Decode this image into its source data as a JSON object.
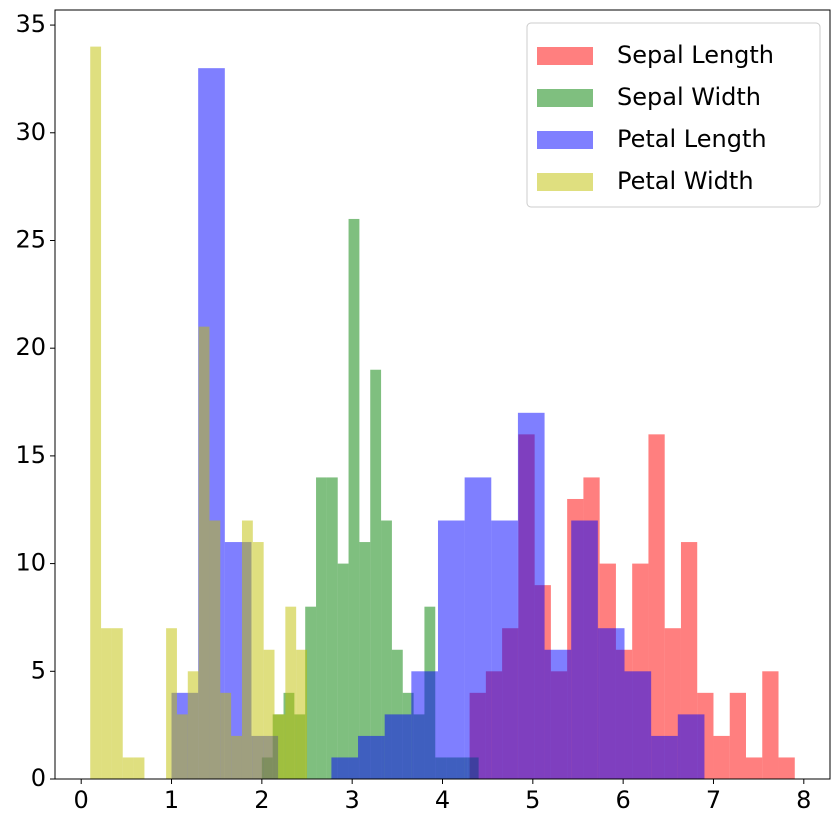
{
  "chart_data": {
    "type": "histogram",
    "series": [
      {
        "name": "Sepal Length",
        "color": "#ff0000",
        "bins": [
          4.3,
          4.48,
          4.66,
          4.84,
          5.02,
          5.2,
          5.38,
          5.56,
          5.74,
          5.92,
          6.1,
          6.28,
          6.46,
          6.64,
          6.82,
          7.0,
          7.18,
          7.36,
          7.54,
          7.72,
          7.9
        ],
        "values": [
          4,
          5,
          7,
          16,
          9,
          5,
          13,
          14,
          10,
          6,
          10,
          16,
          7,
          11,
          4,
          2,
          4,
          1,
          5,
          1
        ]
      },
      {
        "name": "Sepal Width",
        "color": "#008000",
        "bins": [
          2.0,
          2.12,
          2.24,
          2.36,
          2.48,
          2.6,
          2.72,
          2.84,
          2.96,
          3.08,
          3.2,
          3.32,
          3.44,
          3.56,
          3.68,
          3.8,
          3.92,
          4.04,
          4.16,
          4.28,
          4.4
        ],
        "values": [
          1,
          3,
          4,
          3,
          8,
          14,
          14,
          10,
          26,
          11,
          19,
          12,
          6,
          4,
          3,
          8,
          1,
          1,
          1,
          1
        ]
      },
      {
        "name": "Petal Length",
        "color": "#0000ff",
        "bins": [
          1.0,
          1.295,
          1.59,
          1.885,
          2.18,
          2.475,
          2.77,
          3.065,
          3.36,
          3.655,
          3.95,
          4.245,
          4.54,
          4.835,
          5.13,
          5.425,
          5.72,
          6.015,
          6.31,
          6.605,
          6.9
        ],
        "values": [
          4,
          33,
          11,
          2,
          0,
          0,
          1,
          2,
          3,
          5,
          12,
          14,
          12,
          17,
          6,
          12,
          7,
          5,
          2,
          3
        ]
      },
      {
        "name": "Petal Width",
        "color": "#bfbf00",
        "bins": [
          0.1,
          0.22,
          0.34,
          0.46,
          0.58,
          0.7,
          0.82,
          0.94,
          1.06,
          1.18,
          1.3,
          1.42,
          1.54,
          1.66,
          1.78,
          1.9,
          2.02,
          2.14,
          2.26,
          2.38,
          2.5
        ],
        "values": [
          34,
          7,
          7,
          1,
          1,
          0,
          0,
          7,
          3,
          5,
          21,
          12,
          4,
          2,
          12,
          11,
          6,
          3,
          8,
          6
        ]
      }
    ],
    "alpha": 0.5,
    "xlim": [
      -0.29,
      8.29
    ],
    "ylim": [
      0,
      35.7
    ],
    "xticks": [
      0,
      1,
      2,
      3,
      4,
      5,
      6,
      7,
      8
    ],
    "yticks": [
      0,
      5,
      10,
      15,
      20,
      25,
      30,
      35
    ],
    "legend": "upper right"
  }
}
